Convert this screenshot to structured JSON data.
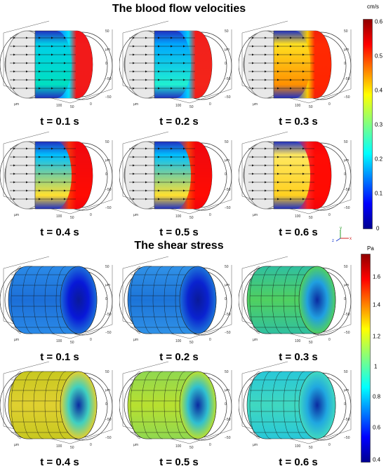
{
  "velocity": {
    "title": "The blood flow velocities",
    "unit": "cm/s",
    "ticks": [
      "0.6",
      "0.5",
      "0.4",
      "0.3",
      "0.2",
      "0.1",
      "0"
    ],
    "panels": [
      {
        "label": "t = 0.1 s"
      },
      {
        "label": "t = 0.2 s"
      },
      {
        "label": "t = 0.3 s"
      },
      {
        "label": "t = 0.4 s"
      },
      {
        "label": "t = 0.5 s"
      },
      {
        "label": "t = 0.6 s"
      }
    ]
  },
  "shear": {
    "title": "The shear stress",
    "unit": "Pa",
    "ticks": [
      "1.6",
      "1.4",
      "1.2",
      "1",
      "0.8",
      "0.6",
      "0.4"
    ],
    "panels": [
      {
        "label": "t = 0.1 s"
      },
      {
        "label": "t = 0.2 s"
      },
      {
        "label": "t = 0.3 s"
      },
      {
        "label": "t = 0.4 s"
      },
      {
        "label": "t = 0.5 s"
      },
      {
        "label": "t = 0.6 s"
      }
    ]
  },
  "axis_labels": {
    "tick_50": "50",
    "tick_100": "100",
    "tick_0": "0",
    "tick_m50": "−50",
    "unit": "µm"
  },
  "triad": {
    "y": "y",
    "x": "x",
    "z": "z"
  },
  "colors": {
    "jet_low": "#00008f",
    "jet_mid": "#00ff80",
    "jet_high": "#8f0000"
  }
}
